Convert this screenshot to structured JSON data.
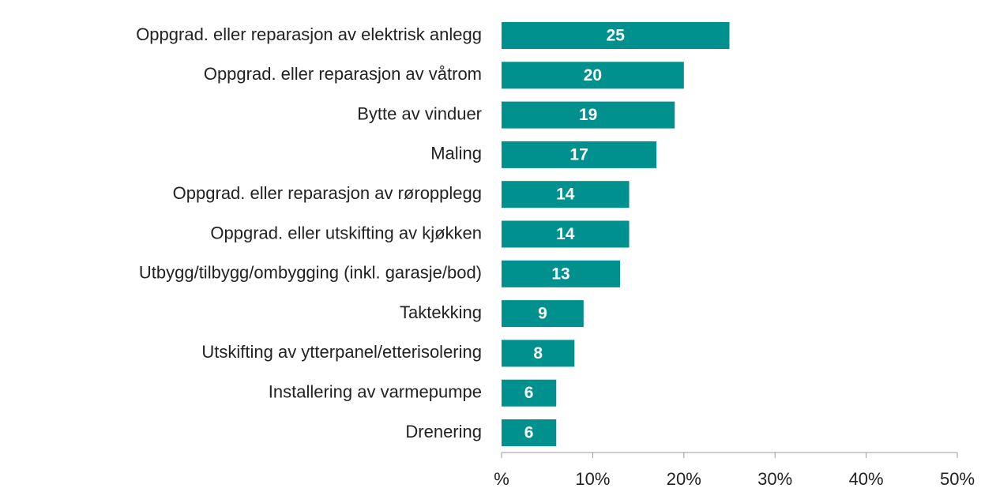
{
  "chart_data": {
    "type": "bar",
    "orientation": "horizontal",
    "categories": [
      "Oppgrad. eller reparasjon av elektrisk anlegg",
      "Oppgrad. eller reparasjon av våtrom",
      "Bytte av vinduer",
      "Maling",
      "Oppgrad. eller reparasjon av røropplegg",
      "Oppgrad. eller utskifting av kjøkken",
      "Utbygg/tilbygg/ombygging (inkl. garasje/bod)",
      "Taktekking",
      "Utskifting av ytterpanel/etterisolering",
      "Installering av varmepumpe",
      "Drenering"
    ],
    "values": [
      25,
      20,
      19,
      17,
      14,
      14,
      13,
      9,
      8,
      6,
      6
    ],
    "color": "#00918e",
    "xlim": [
      0,
      50
    ],
    "xticks": [
      {
        "value": 0,
        "label": "%"
      },
      {
        "value": 10,
        "label": "10%"
      },
      {
        "value": 20,
        "label": "20%"
      },
      {
        "value": 30,
        "label": "30%"
      },
      {
        "value": 40,
        "label": "40%"
      },
      {
        "value": 50,
        "label": "50%"
      }
    ],
    "grid": false
  }
}
